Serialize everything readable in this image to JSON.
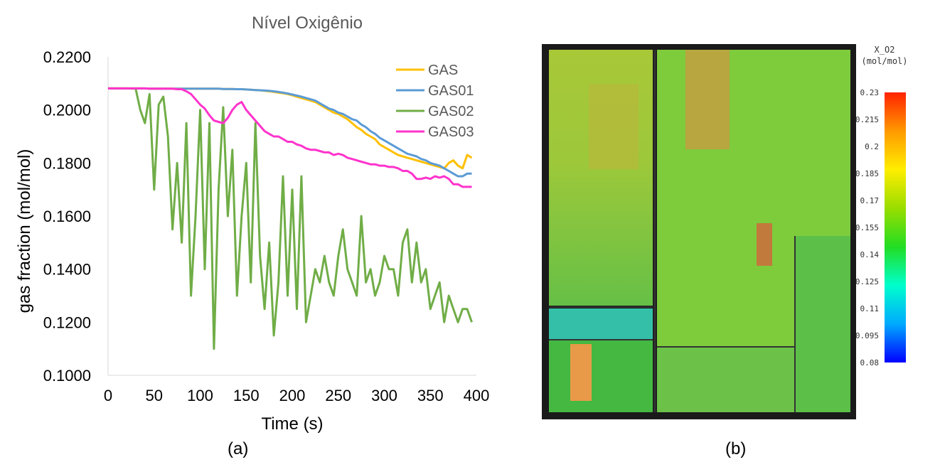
{
  "chart_data": [
    {
      "type": "line",
      "title": "Nível Oxigênio",
      "xlabel": "Time (s)",
      "ylabel": "gas fraction (mol/mol)",
      "xlim": [
        0,
        400
      ],
      "ylim": [
        0.1,
        0.22
      ],
      "xticks": [
        "0",
        "50",
        "100",
        "150",
        "200",
        "250",
        "300",
        "350",
        "400"
      ],
      "yticks": [
        "0.1000",
        "0.1200",
        "0.1400",
        "0.1600",
        "0.1800",
        "0.2000",
        "0.2200"
      ],
      "grid": false,
      "legend_position": "top-right",
      "x": [
        0,
        10,
        20,
        30,
        35,
        40,
        45,
        50,
        55,
        60,
        65,
        70,
        75,
        80,
        85,
        90,
        95,
        100,
        105,
        110,
        115,
        120,
        125,
        130,
        135,
        140,
        145,
        150,
        155,
        160,
        165,
        170,
        175,
        180,
        185,
        190,
        195,
        200,
        205,
        210,
        215,
        220,
        225,
        230,
        235,
        240,
        245,
        250,
        255,
        260,
        265,
        270,
        275,
        280,
        285,
        290,
        295,
        300,
        305,
        310,
        315,
        320,
        325,
        330,
        335,
        340,
        345,
        350,
        355,
        360,
        365,
        370,
        375,
        380,
        385,
        390,
        395
      ],
      "series": [
        {
          "name": "GAS",
          "color": "#FFC000",
          "values": [
            0.2081,
            0.2081,
            0.2081,
            0.2081,
            0.2081,
            0.2081,
            0.208,
            0.208,
            0.208,
            0.208,
            0.208,
            0.208,
            0.208,
            0.208,
            0.208,
            0.208,
            0.208,
            0.208,
            0.208,
            0.208,
            0.208,
            0.208,
            0.2079,
            0.2079,
            0.2079,
            0.2078,
            0.2078,
            0.2077,
            0.2076,
            0.2075,
            0.2074,
            0.2072,
            0.207,
            0.2068,
            0.2065,
            0.2063,
            0.206,
            0.2055,
            0.205,
            0.2045,
            0.204,
            0.2035,
            0.203,
            0.202,
            0.201,
            0.2,
            0.199,
            0.1985,
            0.1975,
            0.1965,
            0.195,
            0.1935,
            0.1925,
            0.191,
            0.19,
            0.189,
            0.187,
            0.186,
            0.185,
            0.184,
            0.183,
            0.1825,
            0.182,
            0.1815,
            0.181,
            0.1805,
            0.18,
            0.1795,
            0.179,
            0.1785,
            0.178,
            0.18,
            0.181,
            0.179,
            0.178,
            0.183,
            0.182
          ]
        },
        {
          "name": "GAS01",
          "color": "#5B9BD5",
          "values": [
            0.2081,
            0.2081,
            0.2081,
            0.2081,
            0.2081,
            0.2081,
            0.208,
            0.208,
            0.208,
            0.208,
            0.208,
            0.208,
            0.208,
            0.208,
            0.208,
            0.208,
            0.208,
            0.208,
            0.208,
            0.208,
            0.208,
            0.208,
            0.2079,
            0.2079,
            0.2079,
            0.2078,
            0.2078,
            0.2077,
            0.2076,
            0.2075,
            0.2074,
            0.2073,
            0.2072,
            0.207,
            0.2068,
            0.2065,
            0.2062,
            0.2058,
            0.2054,
            0.205,
            0.2045,
            0.204,
            0.2035,
            0.2025,
            0.2015,
            0.2005,
            0.2,
            0.199,
            0.1985,
            0.1975,
            0.1965,
            0.196,
            0.1945,
            0.1935,
            0.192,
            0.191,
            0.1895,
            0.1885,
            0.1875,
            0.1865,
            0.1855,
            0.1845,
            0.1835,
            0.183,
            0.1825,
            0.1815,
            0.181,
            0.18,
            0.1795,
            0.179,
            0.178,
            0.177,
            0.176,
            0.175,
            0.175,
            0.176,
            0.176
          ]
        },
        {
          "name": "GAS02",
          "color": "#70AD47",
          "values": [
            0.2081,
            0.2081,
            0.2081,
            0.208,
            0.2,
            0.195,
            0.206,
            0.17,
            0.202,
            0.205,
            0.19,
            0.155,
            0.18,
            0.15,
            0.195,
            0.13,
            0.16,
            0.2,
            0.14,
            0.195,
            0.11,
            0.17,
            0.201,
            0.16,
            0.185,
            0.13,
            0.16,
            0.18,
            0.135,
            0.195,
            0.145,
            0.125,
            0.15,
            0.115,
            0.135,
            0.175,
            0.13,
            0.17,
            0.125,
            0.175,
            0.12,
            0.13,
            0.14,
            0.135,
            0.145,
            0.135,
            0.13,
            0.145,
            0.155,
            0.14,
            0.135,
            0.13,
            0.16,
            0.135,
            0.14,
            0.13,
            0.135,
            0.145,
            0.14,
            0.14,
            0.13,
            0.15,
            0.155,
            0.135,
            0.15,
            0.135,
            0.14,
            0.125,
            0.13,
            0.135,
            0.12,
            0.13,
            0.125,
            0.12,
            0.125,
            0.125,
            0.12
          ]
        },
        {
          "name": "GAS03",
          "color": "#FF33CC",
          "values": [
            0.2081,
            0.2081,
            0.2081,
            0.2081,
            0.2081,
            0.2081,
            0.208,
            0.208,
            0.208,
            0.208,
            0.208,
            0.208,
            0.2078,
            0.2078,
            0.207,
            0.206,
            0.204,
            0.202,
            0.2005,
            0.198,
            0.196,
            0.1955,
            0.195,
            0.197,
            0.2,
            0.202,
            0.203,
            0.2,
            0.198,
            0.196,
            0.194,
            0.192,
            0.191,
            0.19,
            0.19,
            0.189,
            0.188,
            0.188,
            0.187,
            0.1865,
            0.1855,
            0.185,
            0.185,
            0.1845,
            0.184,
            0.184,
            0.183,
            0.1835,
            0.183,
            0.182,
            0.1815,
            0.181,
            0.1805,
            0.18,
            0.1795,
            0.1795,
            0.179,
            0.179,
            0.1785,
            0.1785,
            0.178,
            0.177,
            0.177,
            0.176,
            0.174,
            0.174,
            0.1745,
            0.174,
            0.175,
            0.1745,
            0.175,
            0.174,
            0.172,
            0.172,
            0.171,
            0.171,
            0.171
          ]
        }
      ]
    },
    {
      "type": "heatmap",
      "colorbar_title": "X_O2",
      "colorbar_unit": "(mol/mol)",
      "colorbar_ticks": [
        "0.23",
        "0.215",
        "0.2",
        "0.185",
        "0.17",
        "0.155",
        "0.14",
        "0.125",
        "0.11",
        "0.095",
        "0.08"
      ],
      "colorbar_range": [
        0.08,
        0.23
      ],
      "colorbar_colors": [
        "#0000ff",
        "#00aaff",
        "#00ffcc",
        "#22dd22",
        "#99dd00",
        "#ffee00",
        "#ff9900",
        "#ff2200"
      ]
    }
  ],
  "captions": {
    "a": "(a)",
    "b": "(b)"
  }
}
